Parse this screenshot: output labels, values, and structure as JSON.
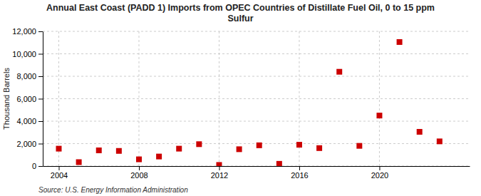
{
  "chart_data": {
    "type": "scatter",
    "title": "Annual East Coast (PADD 1) Imports from OPEC Countries of Distillate Fuel Oil, 0 to 15 ppm\nSulfur",
    "ylabel": "Thousand Barrels",
    "annotations": [
      "Source: U.S. Energy Information Administration"
    ],
    "x": [
      2004,
      2005,
      2006,
      2007,
      2008,
      2009,
      2010,
      2011,
      2012,
      2013,
      2014,
      2015,
      2016,
      2017,
      2018,
      2019,
      2020,
      2021,
      2022,
      2023
    ],
    "values": [
      1550,
      350,
      1400,
      1350,
      600,
      850,
      1550,
      1950,
      100,
      1500,
      1850,
      200,
      1900,
      1600,
      8400,
      1800,
      4500,
      11050,
      3050,
      2200
    ],
    "color": "#cc0000",
    "marker": "square",
    "xlim": [
      2003.2,
      2024.5
    ],
    "xticks": [
      2004,
      2008,
      2012,
      2016,
      2020
    ],
    "ylim": [
      0,
      12000
    ],
    "yticks": [
      0,
      {
        "value": 2000,
        "label": "2,000"
      },
      {
        "value": 4000,
        "label": "4,000"
      },
      {
        "value": 6000,
        "label": "6,000"
      },
      {
        "value": 8000,
        "label": "8,000"
      },
      {
        "value": 10000,
        "label": "10,000"
      },
      {
        "value": 12000,
        "label": "12,000"
      }
    ],
    "grid": true
  }
}
